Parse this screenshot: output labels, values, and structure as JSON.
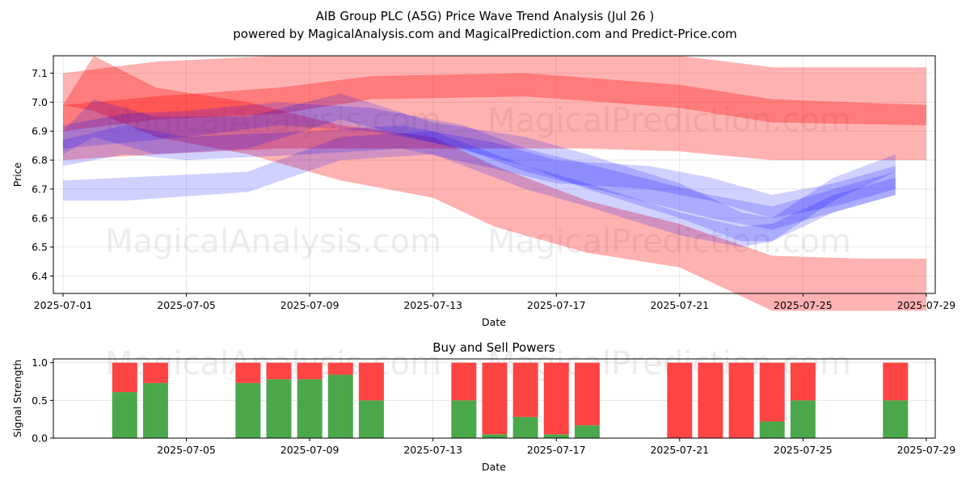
{
  "header": {
    "title": "AIB Group PLC (A5G) Price Wave Trend Analysis (Jul 26 )",
    "subtitle": "powered by MagicalAnalysis.com and MagicalPrediction.com and Predict-Price.com"
  },
  "watermarks": [
    "MagicalAnalysis.com",
    "MagicalPrediction.com"
  ],
  "chart_data": [
    {
      "type": "area",
      "xlabel": "Date",
      "ylabel": "Price",
      "ylim": [
        6.34,
        7.16
      ],
      "xlim": [
        "2025-07-01",
        "2025-07-29"
      ],
      "x_ticks": [
        "2025-07-01",
        "2025-07-05",
        "2025-07-09",
        "2025-07-13",
        "2025-07-17",
        "2025-07-21",
        "2025-07-25",
        "2025-07-29"
      ],
      "y_ticks": [
        6.4,
        6.5,
        6.6,
        6.7,
        6.8,
        6.9,
        7.0,
        7.1
      ],
      "grid": true,
      "series": [
        {
          "color": "#ff0000",
          "kind": "band",
          "x": [
            "2025-07-01",
            "2025-07-04",
            "2025-07-08",
            "2025-07-11",
            "2025-07-15",
            "2025-07-18",
            "2025-07-21",
            "2025-07-24",
            "2025-07-27",
            "2025-07-29"
          ],
          "upper": [
            7.1,
            7.14,
            7.16,
            7.16,
            7.16,
            7.16,
            7.16,
            7.12,
            7.12,
            7.12
          ],
          "lower": [
            6.8,
            6.82,
            6.84,
            6.84,
            6.84,
            6.84,
            6.83,
            6.8,
            6.8,
            6.8
          ]
        },
        {
          "color": "#ff0000",
          "kind": "band",
          "x": [
            "2025-07-01",
            "2025-07-02",
            "2025-07-04",
            "2025-07-07",
            "2025-07-10",
            "2025-07-13",
            "2025-07-15",
            "2025-07-18",
            "2025-07-21",
            "2025-07-24",
            "2025-07-27",
            "2025-07-29"
          ],
          "upper": [
            6.99,
            7.16,
            7.05,
            7.0,
            6.92,
            6.88,
            6.78,
            6.66,
            6.58,
            6.47,
            6.46,
            6.46
          ],
          "lower": [
            6.99,
            6.97,
            6.88,
            6.82,
            6.73,
            6.67,
            6.57,
            6.48,
            6.43,
            6.28,
            6.28,
            6.28
          ]
        },
        {
          "color": "#ff0000",
          "kind": "band",
          "x": [
            "2025-07-01",
            "2025-07-04",
            "2025-07-08",
            "2025-07-11",
            "2025-07-16",
            "2025-07-21",
            "2025-07-24",
            "2025-07-29"
          ],
          "upper": [
            6.99,
            7.02,
            7.05,
            7.09,
            7.1,
            7.06,
            7.01,
            6.99
          ],
          "lower": [
            6.9,
            6.94,
            6.96,
            7.01,
            7.02,
            6.98,
            6.93,
            6.92
          ]
        },
        {
          "color": "#0000ff",
          "kind": "band",
          "x": [
            "2025-07-01",
            "2025-07-03",
            "2025-07-07",
            "2025-07-10",
            "2025-07-13",
            "2025-07-16",
            "2025-07-18",
            "2025-07-21",
            "2025-07-23",
            "2025-07-24",
            "2025-07-26",
            "2025-07-28"
          ],
          "upper": [
            6.73,
            6.74,
            6.76,
            6.88,
            6.9,
            6.78,
            6.72,
            6.62,
            6.57,
            6.58,
            6.68,
            6.74
          ],
          "lower": [
            6.66,
            6.66,
            6.69,
            6.8,
            6.82,
            6.7,
            6.64,
            6.54,
            6.5,
            6.52,
            6.62,
            6.68
          ]
        },
        {
          "color": "#0000ff",
          "kind": "band",
          "x": [
            "2025-07-01",
            "2025-07-02",
            "2025-07-04",
            "2025-07-07",
            "2025-07-10",
            "2025-07-13",
            "2025-07-16",
            "2025-07-18",
            "2025-07-21",
            "2025-07-23",
            "2025-07-24",
            "2025-07-26",
            "2025-07-28"
          ],
          "upper": [
            6.9,
            7.01,
            6.95,
            6.95,
            7.03,
            6.93,
            6.88,
            6.82,
            6.72,
            6.62,
            6.6,
            6.74,
            6.82
          ],
          "lower": [
            6.82,
            6.88,
            6.82,
            6.84,
            6.94,
            6.86,
            6.78,
            6.7,
            6.6,
            6.52,
            6.52,
            6.66,
            6.76
          ]
        },
        {
          "color": "#0000ff",
          "kind": "band",
          "x": [
            "2025-07-01",
            "2025-07-03",
            "2025-07-05",
            "2025-07-09",
            "2025-07-12",
            "2025-07-15",
            "2025-07-17",
            "2025-07-20",
            "2025-07-22",
            "2025-07-24",
            "2025-07-26",
            "2025-07-28"
          ],
          "upper": [
            6.87,
            6.92,
            6.88,
            6.9,
            6.92,
            6.86,
            6.8,
            6.78,
            6.74,
            6.68,
            6.72,
            6.78
          ],
          "lower": [
            6.78,
            6.82,
            6.8,
            6.82,
            6.84,
            6.77,
            6.72,
            6.7,
            6.66,
            6.6,
            6.64,
            6.7
          ]
        },
        {
          "color": "#0000ff",
          "kind": "band",
          "x": [
            "2025-07-01",
            "2025-07-03",
            "2025-07-05",
            "2025-07-08",
            "2025-07-11",
            "2025-07-14",
            "2025-07-16",
            "2025-07-19",
            "2025-07-22",
            "2025-07-24",
            "2025-07-26",
            "2025-07-28"
          ],
          "upper": [
            6.92,
            6.96,
            6.97,
            7.0,
            6.98,
            6.92,
            6.84,
            6.76,
            6.68,
            6.64,
            6.7,
            6.76
          ],
          "lower": [
            6.84,
            6.86,
            6.88,
            6.92,
            6.9,
            6.84,
            6.76,
            6.68,
            6.6,
            6.56,
            6.62,
            6.68
          ]
        }
      ]
    },
    {
      "type": "bar",
      "title": "Buy and Sell Powers",
      "xlabel": "Date",
      "ylabel": "Signal Strength",
      "ylim": [
        0,
        1.05
      ],
      "y_ticks": [
        0.0,
        0.5,
        1.0
      ],
      "x_ticks": [
        "2025-07-05",
        "2025-07-09",
        "2025-07-13",
        "2025-07-17",
        "2025-07-21",
        "2025-07-25",
        "2025-07-29"
      ],
      "grid": true,
      "categories": [
        "2025-07-03",
        "2025-07-04",
        "2025-07-07",
        "2025-07-08",
        "2025-07-09",
        "2025-07-10",
        "2025-07-11",
        "2025-07-14",
        "2025-07-15",
        "2025-07-16",
        "2025-07-17",
        "2025-07-18",
        "2025-07-21",
        "2025-07-22",
        "2025-07-23",
        "2025-07-24",
        "2025-07-25",
        "2025-07-28"
      ],
      "series": [
        {
          "color": "#4aa84a",
          "values": [
            0.61,
            0.73,
            0.73,
            0.78,
            0.78,
            0.84,
            0.5,
            0.5,
            0.05,
            0.28,
            0.05,
            0.17,
            0.0,
            0.0,
            0.0,
            0.22,
            0.5,
            0.5
          ]
        },
        {
          "color": "#ff4444",
          "values": [
            0.39,
            0.27,
            0.27,
            0.22,
            0.22,
            0.16,
            0.5,
            0.5,
            0.95,
            0.72,
            0.95,
            0.83,
            1.0,
            1.0,
            1.0,
            0.78,
            0.5,
            0.5
          ]
        }
      ]
    }
  ]
}
